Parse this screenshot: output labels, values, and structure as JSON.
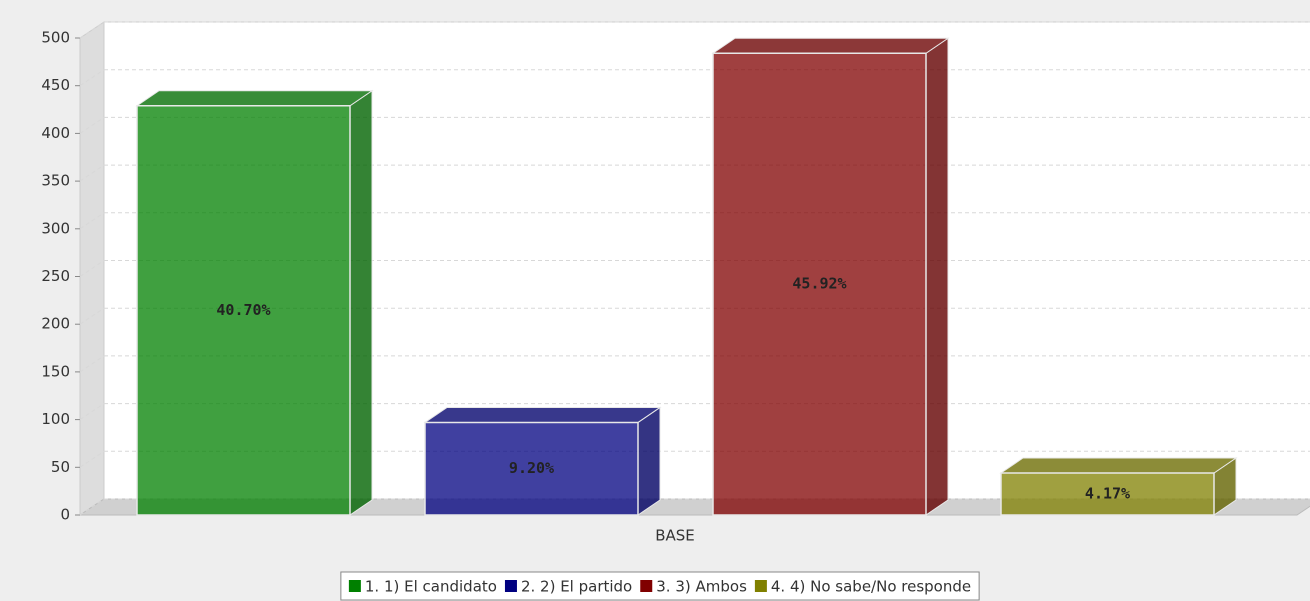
{
  "chart_data": {
    "type": "bar3d",
    "categories": [
      "BASE"
    ],
    "series": [
      {
        "name": "1. 1) El candidato",
        "color": "#008000",
        "values": [
          429
        ],
        "value_labels": [
          "40.70%"
        ]
      },
      {
        "name": "2. 2) El partido",
        "color": "#000080",
        "values": [
          97
        ],
        "value_labels": [
          "9.20%"
        ]
      },
      {
        "name": "3. 3) Ambos",
        "color": "#800000",
        "values": [
          484
        ],
        "value_labels": [
          "45.92%"
        ]
      },
      {
        "name": "4. 4) No sabe/No responde",
        "color": "#808000",
        "values": [
          44
        ],
        "value_labels": [
          "4.17%"
        ]
      }
    ],
    "ylim": [
      0,
      500
    ],
    "yticks": [
      0,
      50,
      100,
      150,
      200,
      250,
      300,
      350,
      400,
      450,
      500
    ],
    "grid": true,
    "legend": "bottom"
  }
}
